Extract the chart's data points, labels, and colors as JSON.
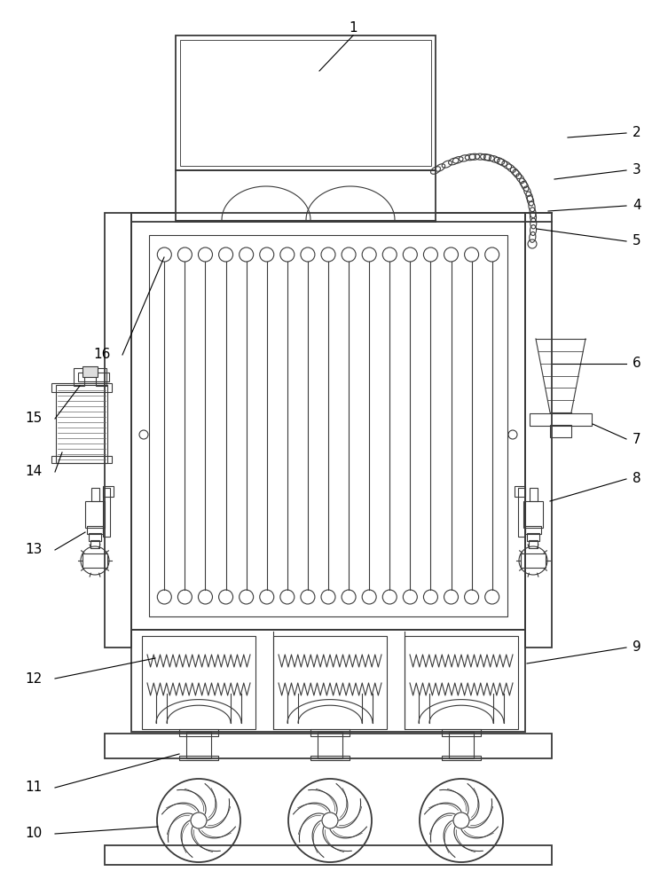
{
  "bg_color": "#ffffff",
  "lc": "#3a3a3a",
  "lw": 1.3,
  "tlw": 0.8,
  "fig_width": 7.44,
  "fig_height": 10.0
}
